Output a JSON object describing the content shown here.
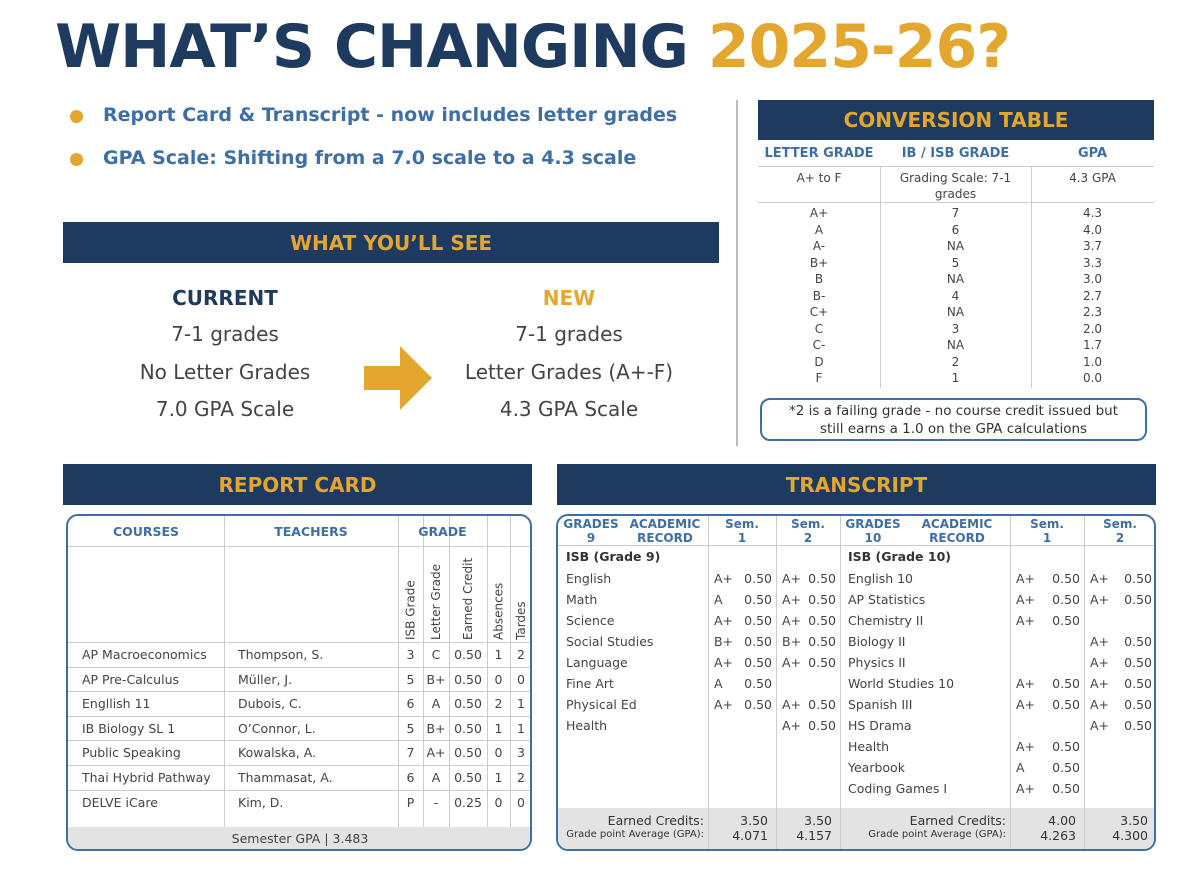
{
  "title": {
    "main": "WHAT’S CHANGING",
    "year": "2025-26?"
  },
  "bullets": [
    "Report Card & Transcript - now includes letter grades",
    "GPA Scale:  Shifting from a 7.0 scale to a 4.3 scale"
  ],
  "what_youll_see": {
    "heading": "WHAT YOU’LL SEE",
    "current": {
      "label": "CURRENT",
      "items": [
        "7-1 grades",
        "No Letter Grades",
        "7.0 GPA Scale"
      ]
    },
    "new": {
      "label": "NEW",
      "items": [
        "7-1 grades",
        "Letter Grades (A+-F)",
        "4.3 GPA Scale"
      ]
    }
  },
  "conversion_table": {
    "heading": "CONVERSION TABLE",
    "columns": [
      "LETTER GRADE",
      "IB / ISB GRADE",
      "GPA"
    ],
    "scale_row": [
      "A+ to F",
      "Grading Scale: 7-1 grades",
      "4.3 GPA"
    ],
    "rows": [
      [
        "A+",
        "7",
        "4.3"
      ],
      [
        "A",
        "6",
        "4.0"
      ],
      [
        "A-",
        "NA",
        "3.7"
      ],
      [
        "B+",
        "5",
        "3.3"
      ],
      [
        "B",
        "NA",
        "3.0"
      ],
      [
        "B-",
        "4",
        "2.7"
      ],
      [
        "C+",
        "NA",
        "2.3"
      ],
      [
        "C",
        "3",
        "2.0"
      ],
      [
        "C-",
        "NA",
        "1.7"
      ],
      [
        "D",
        "2",
        "1.0"
      ],
      [
        "F",
        "1",
        "0.0"
      ]
    ],
    "note": "*2 is a failing grade - no course credit issued but still earns a 1.0 on the GPA calculations"
  },
  "report_card": {
    "heading": "REPORT CARD",
    "columns": [
      "COURSES",
      "TEACHERS",
      "GRADE"
    ],
    "sub_columns": [
      "ISB Grade",
      "Letter Grade",
      "Earned Credit",
      "Absences",
      "Tardes"
    ],
    "rows": [
      [
        "AP Macroeconomics",
        "Thompson, S.",
        "3",
        "C",
        "0.50",
        "1",
        "2"
      ],
      [
        "AP Pre-Calculus",
        "Müller, J.",
        "5",
        "B+",
        "0.50",
        "0",
        "0"
      ],
      [
        "Engllish 11",
        "Dubois, C.",
        "6",
        "A",
        "0.50",
        "2",
        "1"
      ],
      [
        "IB Biology SL 1",
        "O’Connor, L.",
        "5",
        "B+",
        "0.50",
        "1",
        "1"
      ],
      [
        "Public Speaking",
        "Kowalska, A.",
        "7",
        "A+",
        "0.50",
        "0",
        "3"
      ],
      [
        "Thai Hybrid Pathway",
        "Thammasat, A.",
        "6",
        "A",
        "0.50",
        "1",
        "2"
      ],
      [
        "DELVE iCare",
        "Kim, D.",
        "P",
        "-",
        "0.25",
        "0",
        "0"
      ]
    ],
    "footer": "Semester GPA | 3.483"
  },
  "transcript": {
    "heading": "TRANSCRIPT",
    "halves": [
      {
        "columns": [
          "GRADES 9",
          "ACADEMIC RECORD",
          "Sem. 1",
          "Sem. 2"
        ],
        "section": "ISB (Grade 9)",
        "rows": [
          [
            "English",
            "A+",
            "0.50",
            "A+",
            "0.50"
          ],
          [
            "Math",
            "A",
            "0.50",
            "A+",
            "0.50"
          ],
          [
            "Science",
            "A+",
            "0.50",
            "A+",
            "0.50"
          ],
          [
            "Social Studies",
            "B+",
            "0.50",
            "B+",
            "0.50"
          ],
          [
            "Language",
            "A+",
            "0.50",
            "A+",
            "0.50"
          ],
          [
            "Fine Art",
            "A",
            "0.50",
            null,
            null
          ],
          [
            "Physical Ed",
            "A+",
            "0.50",
            "A+",
            "0.50"
          ],
          [
            "Health",
            null,
            null,
            "A+",
            "0.50"
          ]
        ],
        "footer": {
          "credits_label": "Earned Credits:",
          "gpa_label": "Grade point Average (GPA):",
          "sem1": [
            "3.50",
            "4.071"
          ],
          "sem2": [
            "3.50",
            "4.157"
          ]
        }
      },
      {
        "columns": [
          "GRADES 10",
          "ACADEMIC RECORD",
          "Sem. 1",
          "Sem. 2"
        ],
        "section": "ISB (Grade 10)",
        "rows": [
          [
            "English 10",
            "A+",
            "0.50",
            "A+",
            "0.50"
          ],
          [
            "AP Statistics",
            "A+",
            "0.50",
            "A+",
            "0.50"
          ],
          [
            "Chemistry II",
            "A+",
            "0.50",
            null,
            null
          ],
          [
            "Biology II",
            null,
            null,
            "A+",
            "0.50"
          ],
          [
            "Physics II",
            null,
            null,
            "A+",
            "0.50"
          ],
          [
            "World Studies 10",
            "A+",
            "0.50",
            "A+",
            "0.50"
          ],
          [
            "Spanish III",
            "A+",
            "0.50",
            "A+",
            "0.50"
          ],
          [
            "HS Drama",
            null,
            null,
            "A+",
            "0.50"
          ],
          [
            "Health",
            "A+",
            "0.50",
            null,
            null
          ],
          [
            "Yearbook",
            "A",
            "0.50",
            null,
            null
          ],
          [
            "Coding Games I",
            "A+",
            "0.50",
            null,
            null
          ]
        ],
        "footer": {
          "credits_label": "Earned Credits:",
          "gpa_label": "Grade point Average (GPA):",
          "sem1": [
            "4.00",
            "4.263"
          ],
          "sem2": [
            "3.50",
            "4.300"
          ]
        }
      }
    ]
  }
}
